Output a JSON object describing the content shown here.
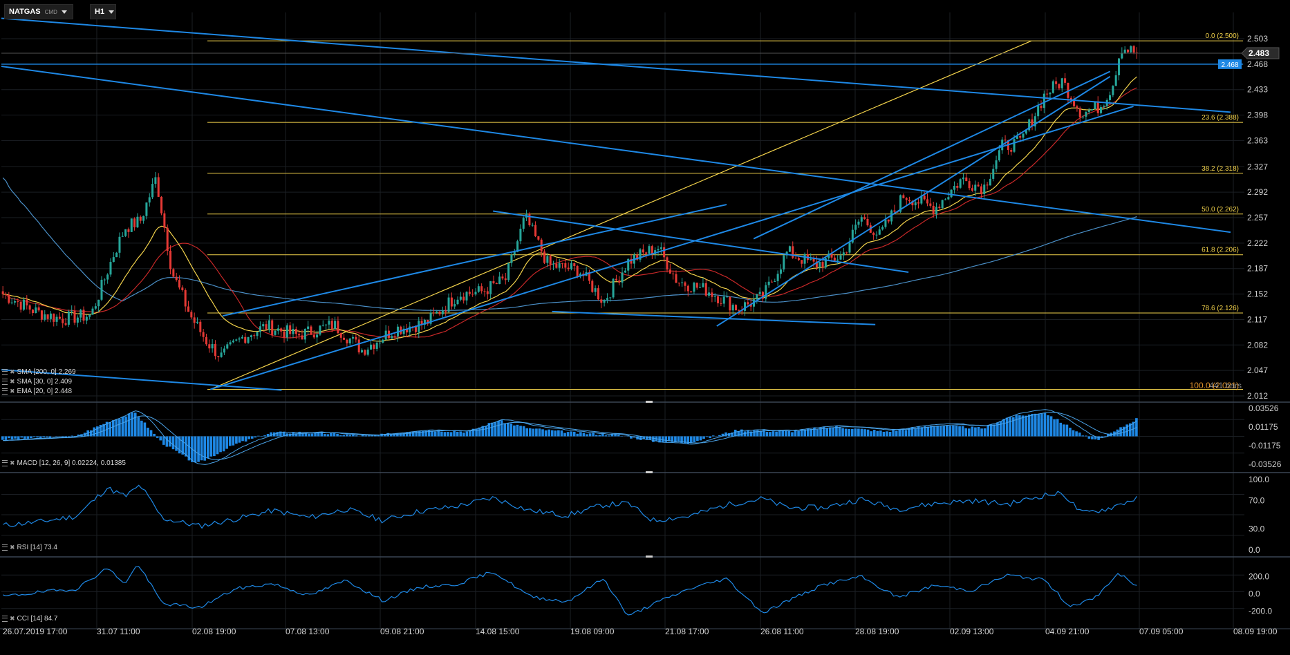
{
  "toolbar": {
    "symbol": "NATGAS",
    "symbol_type": "CMD",
    "timeframe": "H1"
  },
  "colors": {
    "background": "#000000",
    "grid": "#1b1f24",
    "bull": "#26a69a",
    "bear": "#e53935",
    "trendline": "#1e88e5",
    "fibonacci": "#f2d24b",
    "sma200": "#4a8fc7",
    "sma30": "#c62828",
    "ema20": "#f2d24b",
    "indicator_line": "#1e88e5",
    "current_price": "#2b2b2b",
    "line_label": "#1e88e5"
  },
  "indicator_labels": {
    "sma200": "SMA [200, 0] 2.269",
    "sma30": "SMA [30, 0] 2.409",
    "ema20": "EMA [20, 0] 2.448",
    "macd": "MACD [12, 26, 9] 0.02224, 0.01385",
    "rsi": "RSI [14] 73.4",
    "cci": "CCI [14] 84.7"
  },
  "chart_data": {
    "type": "candlestick",
    "instrument": "NATGAS",
    "timeframe": "H1",
    "price_axis": {
      "ticks": [
        "2.503",
        "2.468",
        "2.433",
        "2.398",
        "2.363",
        "2.327",
        "2.292",
        "2.257",
        "2.222",
        "2.187",
        "2.152",
        "2.117",
        "2.082",
        "2.047",
        "2.012"
      ],
      "range": [
        2.012,
        2.503
      ]
    },
    "current_price": "2.483",
    "horizontal_line_price": "2.468",
    "time_axis": [
      "26.07.2019  17:00",
      "31.07  11:00",
      "02.08  19:00",
      "07.08  13:00",
      "09.08  21:00",
      "14.08  15:00",
      "19.08  09:00",
      "21.08  17:00",
      "26.08  11:00",
      "28.08  19:00",
      "02.09  13:00",
      "04.09  21:00",
      "07.09  05:00",
      "08.09  19:00"
    ],
    "fibonacci_levels": [
      {
        "label": "0.0 (2.500)",
        "value": 2.5
      },
      {
        "label": "23.6 (2.388)",
        "value": 2.388
      },
      {
        "label": "38.2 (2.318)",
        "value": 2.318
      },
      {
        "label": "50.0 (2.262)",
        "value": 2.262
      },
      {
        "label": "61.8 (2.206)",
        "value": 2.206
      },
      {
        "label": "78.6 (2.126)",
        "value": 2.126
      },
      {
        "label": "100.0 (2.021)",
        "value": 2.021
      }
    ],
    "fibonacci_bottom_label": "100.0 (2.021)",
    "bars_label": "441 bars",
    "moving_averages": [
      {
        "name": "SMA [200, 0]",
        "value": 2.269
      },
      {
        "name": "SMA [30, 0]",
        "value": 2.409
      },
      {
        "name": "EMA [20, 0]",
        "value": 2.448
      }
    ],
    "key_points": [
      {
        "t": 0,
        "p": 2.152
      },
      {
        "t": 0.028,
        "p": 2.127
      },
      {
        "t": 0.047,
        "p": 2.118
      },
      {
        "t": 0.072,
        "p": 2.123
      },
      {
        "t": 0.09,
        "p": 2.205
      },
      {
        "t": 0.1,
        "p": 2.244
      },
      {
        "t": 0.112,
        "p": 2.252
      },
      {
        "t": 0.125,
        "p": 2.312
      },
      {
        "t": 0.138,
        "p": 2.182
      },
      {
        "t": 0.153,
        "p": 2.122
      },
      {
        "t": 0.167,
        "p": 2.085
      },
      {
        "t": 0.178,
        "p": 2.066
      },
      {
        "t": 0.196,
        "p": 2.093
      },
      {
        "t": 0.215,
        "p": 2.108
      },
      {
        "t": 0.24,
        "p": 2.095
      },
      {
        "t": 0.27,
        "p": 2.11
      },
      {
        "t": 0.293,
        "p": 2.075
      },
      {
        "t": 0.32,
        "p": 2.104
      },
      {
        "t": 0.345,
        "p": 2.112
      },
      {
        "t": 0.372,
        "p": 2.152
      },
      {
        "t": 0.39,
        "p": 2.155
      },
      {
        "t": 0.41,
        "p": 2.172
      },
      {
        "t": 0.426,
        "p": 2.258
      },
      {
        "t": 0.445,
        "p": 2.192
      },
      {
        "t": 0.47,
        "p": 2.185
      },
      {
        "t": 0.49,
        "p": 2.142
      },
      {
        "t": 0.51,
        "p": 2.197
      },
      {
        "t": 0.534,
        "p": 2.217
      },
      {
        "t": 0.55,
        "p": 2.17
      },
      {
        "t": 0.575,
        "p": 2.157
      },
      {
        "t": 0.6,
        "p": 2.132
      },
      {
        "t": 0.62,
        "p": 2.148
      },
      {
        "t": 0.64,
        "p": 2.21
      },
      {
        "t": 0.662,
        "p": 2.192
      },
      {
        "t": 0.685,
        "p": 2.205
      },
      {
        "t": 0.7,
        "p": 2.258
      },
      {
        "t": 0.715,
        "p": 2.232
      },
      {
        "t": 0.735,
        "p": 2.288
      },
      {
        "t": 0.76,
        "p": 2.27
      },
      {
        "t": 0.782,
        "p": 2.31
      },
      {
        "t": 0.8,
        "p": 2.298
      },
      {
        "t": 0.815,
        "p": 2.355
      },
      {
        "t": 0.83,
        "p": 2.36
      },
      {
        "t": 0.85,
        "p": 2.427
      },
      {
        "t": 0.864,
        "p": 2.445
      },
      {
        "t": 0.88,
        "p": 2.4
      },
      {
        "t": 0.895,
        "p": 2.41
      },
      {
        "t": 0.905,
        "p": 2.438
      },
      {
        "t": 0.912,
        "p": 2.492
      },
      {
        "t": 0.925,
        "p": 2.483
      }
    ],
    "trendlines": [
      {
        "from": {
          "t": 0.0,
          "p": 2.531
        },
        "to": {
          "t": 1.0,
          "p": 2.402
        }
      },
      {
        "from": {
          "t": 0.0,
          "p": 2.465
        },
        "to": {
          "t": 1.0,
          "p": 2.237
        }
      },
      {
        "from": {
          "t": 0.17,
          "p": 2.021
        },
        "to": {
          "t": 0.921,
          "p": 2.41
        }
      },
      {
        "from": {
          "t": 0.18,
          "p": 2.122
        },
        "to": {
          "t": 0.59,
          "p": 2.275
        }
      },
      {
        "from": {
          "t": 0.4,
          "p": 2.266
        },
        "to": {
          "t": 0.738,
          "p": 2.182
        }
      },
      {
        "from": {
          "t": 0.448,
          "p": 2.128
        },
        "to": {
          "t": 0.711,
          "p": 2.11
        }
      },
      {
        "from": {
          "t": 0.582,
          "p": 2.108
        },
        "to": {
          "t": 0.902,
          "p": 2.451
        }
      },
      {
        "from": {
          "t": 0.612,
          "p": 2.228
        },
        "to": {
          "t": 0.902,
          "p": 2.458
        }
      },
      {
        "from": {
          "t": 0.0,
          "p": 2.048
        },
        "to": {
          "t": 0.228,
          "p": 2.02
        }
      }
    ],
    "fib_rays": [
      {
        "from": {
          "t": 0.17,
          "p": 2.021
        },
        "to": {
          "t": 0.838,
          "p": 2.5
        }
      }
    ],
    "macd": {
      "axis": [
        "0.03526",
        "0.01175",
        "-0.01175",
        "-0.03526"
      ],
      "range": [
        -0.03526,
        0.03526
      ],
      "macd": 0.02224,
      "signal": 0.01385,
      "key_points": [
        {
          "t": 0,
          "v": -0.004
        },
        {
          "t": 0.03,
          "v": -0.002
        },
        {
          "t": 0.06,
          "v": 0.0
        },
        {
          "t": 0.085,
          "v": 0.018
        },
        {
          "t": 0.108,
          "v": 0.03
        },
        {
          "t": 0.13,
          "v": -0.008
        },
        {
          "t": 0.158,
          "v": -0.035
        },
        {
          "t": 0.19,
          "v": -0.01
        },
        {
          "t": 0.22,
          "v": 0.005
        },
        {
          "t": 0.26,
          "v": 0.004
        },
        {
          "t": 0.3,
          "v": 0.0
        },
        {
          "t": 0.34,
          "v": 0.008
        },
        {
          "t": 0.38,
          "v": 0.006
        },
        {
          "t": 0.404,
          "v": 0.02
        },
        {
          "t": 0.43,
          "v": 0.01
        },
        {
          "t": 0.47,
          "v": 0.004
        },
        {
          "t": 0.5,
          "v": 0.002
        },
        {
          "t": 0.53,
          "v": -0.006
        },
        {
          "t": 0.56,
          "v": -0.008
        },
        {
          "t": 0.6,
          "v": 0.008
        },
        {
          "t": 0.64,
          "v": 0.006
        },
        {
          "t": 0.68,
          "v": 0.012
        },
        {
          "t": 0.72,
          "v": 0.006
        },
        {
          "t": 0.76,
          "v": 0.014
        },
        {
          "t": 0.8,
          "v": 0.01
        },
        {
          "t": 0.82,
          "v": 0.024
        },
        {
          "t": 0.85,
          "v": 0.03
        },
        {
          "t": 0.87,
          "v": 0.012
        },
        {
          "t": 0.89,
          "v": -0.006
        },
        {
          "t": 0.905,
          "v": 0.004
        },
        {
          "t": 0.925,
          "v": 0.022
        }
      ]
    },
    "rsi": {
      "axis": [
        "100.0",
        "70.0",
        "30.0",
        "0.0"
      ],
      "range": [
        0,
        100
      ],
      "value": 73.4,
      "key_points": [
        {
          "t": 0,
          "v": 35
        },
        {
          "t": 0.03,
          "v": 40
        },
        {
          "t": 0.06,
          "v": 48
        },
        {
          "t": 0.085,
          "v": 88
        },
        {
          "t": 0.1,
          "v": 76
        },
        {
          "t": 0.112,
          "v": 92
        },
        {
          "t": 0.13,
          "v": 45
        },
        {
          "t": 0.16,
          "v": 34
        },
        {
          "t": 0.19,
          "v": 44
        },
        {
          "t": 0.22,
          "v": 56
        },
        {
          "t": 0.25,
          "v": 46
        },
        {
          "t": 0.28,
          "v": 58
        },
        {
          "t": 0.31,
          "v": 42
        },
        {
          "t": 0.34,
          "v": 55
        },
        {
          "t": 0.37,
          "v": 62
        },
        {
          "t": 0.4,
          "v": 74
        },
        {
          "t": 0.43,
          "v": 56
        },
        {
          "t": 0.46,
          "v": 49
        },
        {
          "t": 0.49,
          "v": 64
        },
        {
          "t": 0.51,
          "v": 66
        },
        {
          "t": 0.53,
          "v": 42
        },
        {
          "t": 0.56,
          "v": 48
        },
        {
          "t": 0.59,
          "v": 64
        },
        {
          "t": 0.62,
          "v": 73
        },
        {
          "t": 0.64,
          "v": 60
        },
        {
          "t": 0.67,
          "v": 60
        },
        {
          "t": 0.7,
          "v": 72
        },
        {
          "t": 0.73,
          "v": 58
        },
        {
          "t": 0.76,
          "v": 66
        },
        {
          "t": 0.79,
          "v": 70
        },
        {
          "t": 0.82,
          "v": 65
        },
        {
          "t": 0.85,
          "v": 78
        },
        {
          "t": 0.865,
          "v": 80
        },
        {
          "t": 0.88,
          "v": 52
        },
        {
          "t": 0.9,
          "v": 58
        },
        {
          "t": 0.925,
          "v": 73.4
        }
      ]
    },
    "cci": {
      "axis": [
        "200.0",
        "0.0",
        "-200.0"
      ],
      "range": [
        -300,
        350
      ],
      "value": 84.7,
      "key_points": [
        {
          "t": 0,
          "v": -30
        },
        {
          "t": 0.03,
          "v": 20
        },
        {
          "t": 0.06,
          "v": 60
        },
        {
          "t": 0.085,
          "v": 300
        },
        {
          "t": 0.1,
          "v": 120
        },
        {
          "t": 0.11,
          "v": 350
        },
        {
          "t": 0.13,
          "v": -110
        },
        {
          "t": 0.16,
          "v": -160
        },
        {
          "t": 0.19,
          "v": 60
        },
        {
          "t": 0.22,
          "v": 120
        },
        {
          "t": 0.25,
          "v": -20
        },
        {
          "t": 0.28,
          "v": 160
        },
        {
          "t": 0.31,
          "v": -80
        },
        {
          "t": 0.34,
          "v": 80
        },
        {
          "t": 0.37,
          "v": 110
        },
        {
          "t": 0.4,
          "v": 260
        },
        {
          "t": 0.43,
          "v": -30
        },
        {
          "t": 0.46,
          "v": -90
        },
        {
          "t": 0.49,
          "v": 180
        },
        {
          "t": 0.51,
          "v": -260
        },
        {
          "t": 0.53,
          "v": -120
        },
        {
          "t": 0.56,
          "v": 60
        },
        {
          "t": 0.59,
          "v": 180
        },
        {
          "t": 0.62,
          "v": -220
        },
        {
          "t": 0.64,
          "v": -80
        },
        {
          "t": 0.67,
          "v": 110
        },
        {
          "t": 0.7,
          "v": 200
        },
        {
          "t": 0.73,
          "v": -40
        },
        {
          "t": 0.76,
          "v": 100
        },
        {
          "t": 0.79,
          "v": 40
        },
        {
          "t": 0.82,
          "v": 220
        },
        {
          "t": 0.85,
          "v": 160
        },
        {
          "t": 0.87,
          "v": -140
        },
        {
          "t": 0.89,
          "v": -60
        },
        {
          "t": 0.91,
          "v": 240
        },
        {
          "t": 0.925,
          "v": 84.7
        }
      ]
    }
  }
}
